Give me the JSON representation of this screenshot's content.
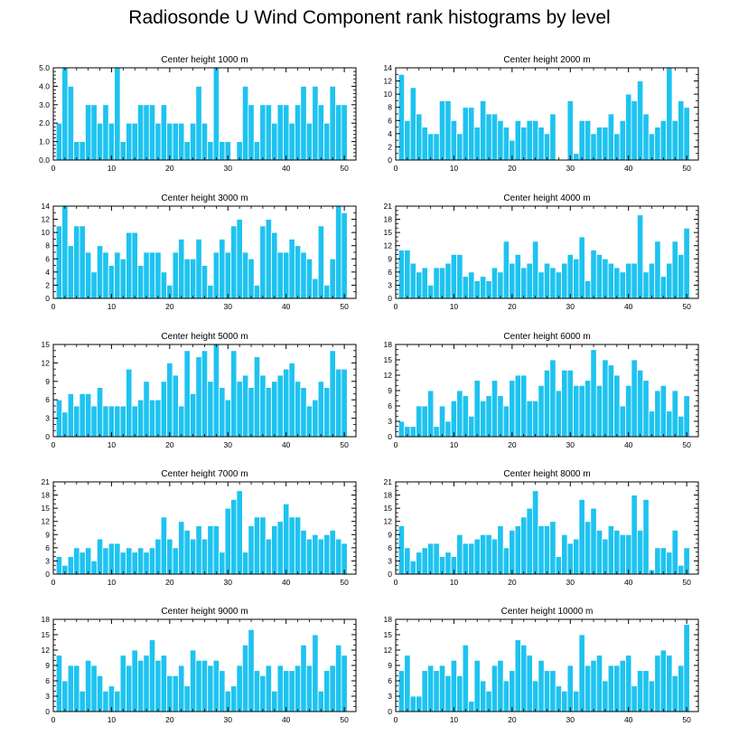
{
  "title": "Radiosonde U Wind Component rank histograms by level",
  "colors": {
    "bar": "#1EC3F0",
    "bar_edge": "#FFFFFF",
    "axis": "#000000"
  },
  "chart_data": [
    {
      "type": "bar",
      "title": "Center height 1000 m",
      "xlim": [
        0,
        52
      ],
      "ylim": [
        0,
        5
      ],
      "yticks": [
        "0.0",
        "1.0",
        "2.0",
        "3.0",
        "4.0",
        "5.0"
      ],
      "ytick_values": [
        0,
        1,
        2,
        3,
        4,
        5
      ],
      "xticks": [
        "0",
        "10",
        "20",
        "30",
        "40",
        "50"
      ],
      "xtick_values": [
        0,
        10,
        20,
        30,
        40,
        50
      ],
      "values": [
        2,
        5,
        4,
        1,
        1,
        3,
        3,
        2,
        3,
        2,
        5,
        1,
        2,
        2,
        3,
        3,
        3,
        2,
        3,
        2,
        2,
        2,
        1,
        2,
        4,
        2,
        1,
        5,
        1,
        1,
        0,
        1,
        4,
        3,
        1,
        3,
        3,
        2,
        3,
        3,
        2,
        3,
        4,
        2,
        4,
        3,
        2,
        4,
        3,
        3
      ]
    },
    {
      "type": "bar",
      "title": "Center height 2000 m",
      "xlim": [
        0,
        52
      ],
      "ylim": [
        0,
        14
      ],
      "yticks": [
        "0",
        "2",
        "4",
        "6",
        "8",
        "10",
        "12",
        "14"
      ],
      "ytick_values": [
        0,
        2,
        4,
        6,
        8,
        10,
        12,
        14
      ],
      "xticks": [
        "0",
        "10",
        "20",
        "30",
        "40",
        "50"
      ],
      "xtick_values": [
        0,
        10,
        20,
        30,
        40,
        50
      ],
      "values": [
        13,
        6,
        11,
        7,
        5,
        4,
        4,
        9,
        9,
        6,
        4,
        8,
        8,
        5,
        9,
        7,
        7,
        6,
        5,
        3,
        6,
        5,
        6,
        6,
        5,
        4,
        7,
        0,
        0,
        9,
        1,
        6,
        6,
        4,
        5,
        5,
        7,
        4,
        6,
        10,
        9,
        12,
        7,
        4,
        5,
        6,
        14,
        6,
        9,
        8
      ]
    },
    {
      "type": "bar",
      "title": "Center height 3000 m",
      "xlim": [
        0,
        52
      ],
      "ylim": [
        0,
        14
      ],
      "yticks": [
        "0",
        "2",
        "4",
        "6",
        "8",
        "10",
        "12",
        "14"
      ],
      "ytick_values": [
        0,
        2,
        4,
        6,
        8,
        10,
        12,
        14
      ],
      "xticks": [
        "0",
        "10",
        "20",
        "30",
        "40",
        "50"
      ],
      "xtick_values": [
        0,
        10,
        20,
        30,
        40,
        50
      ],
      "values": [
        11,
        14,
        8,
        11,
        11,
        7,
        4,
        8,
        7,
        5,
        7,
        6,
        10,
        10,
        5,
        7,
        7,
        7,
        4,
        2,
        7,
        9,
        6,
        6,
        9,
        5,
        2,
        7,
        9,
        7,
        11,
        12,
        7,
        6,
        2,
        11,
        12,
        10,
        7,
        7,
        9,
        8,
        7,
        6,
        3,
        11,
        2,
        6,
        14,
        13
      ]
    },
    {
      "type": "bar",
      "title": "Center height 4000 m",
      "xlim": [
        0,
        52
      ],
      "ylim": [
        0,
        21
      ],
      "yticks": [
        "0",
        "3",
        "6",
        "9",
        "12",
        "15",
        "18",
        "21"
      ],
      "ytick_values": [
        0,
        3,
        6,
        9,
        12,
        15,
        18,
        21
      ],
      "xticks": [
        "0",
        "10",
        "20",
        "30",
        "40",
        "50"
      ],
      "xtick_values": [
        0,
        10,
        20,
        30,
        40,
        50
      ],
      "values": [
        11,
        11,
        8,
        6,
        7,
        3,
        7,
        7,
        8,
        10,
        10,
        5,
        6,
        4,
        5,
        4,
        7,
        6,
        13,
        8,
        10,
        7,
        8,
        13,
        6,
        8,
        7,
        6,
        8,
        10,
        9,
        14,
        4,
        11,
        10,
        9,
        8,
        7,
        6,
        8,
        8,
        19,
        6,
        8,
        13,
        5,
        8,
        13,
        10,
        16
      ]
    },
    {
      "type": "bar",
      "title": "Center height 5000 m",
      "xlim": [
        0,
        52
      ],
      "ylim": [
        0,
        15
      ],
      "yticks": [
        "0",
        "3",
        "6",
        "9",
        "12",
        "15"
      ],
      "ytick_values": [
        0,
        3,
        6,
        9,
        12,
        15
      ],
      "xticks": [
        "0",
        "10",
        "20",
        "30",
        "40",
        "50"
      ],
      "xtick_values": [
        0,
        10,
        20,
        30,
        40,
        50
      ],
      "values": [
        6,
        4,
        7,
        5,
        7,
        7,
        5,
        8,
        5,
        5,
        5,
        5,
        11,
        5,
        6,
        9,
        6,
        6,
        9,
        12,
        10,
        5,
        14,
        7,
        13,
        14,
        9,
        15,
        8,
        6,
        14,
        9,
        10,
        8,
        13,
        10,
        8,
        9,
        10,
        11,
        12,
        9,
        8,
        5,
        6,
        9,
        8,
        14,
        11,
        11
      ]
    },
    {
      "type": "bar",
      "title": "Center height 6000 m",
      "xlim": [
        0,
        52
      ],
      "ylim": [
        0,
        18
      ],
      "yticks": [
        "0",
        "3",
        "6",
        "9",
        "12",
        "15",
        "18"
      ],
      "ytick_values": [
        0,
        3,
        6,
        9,
        12,
        15,
        18
      ],
      "xticks": [
        "0",
        "10",
        "20",
        "30",
        "40",
        "50"
      ],
      "xtick_values": [
        0,
        10,
        20,
        30,
        40,
        50
      ],
      "values": [
        3,
        2,
        2,
        6,
        6,
        9,
        2,
        6,
        3,
        7,
        9,
        8,
        4,
        11,
        7,
        8,
        11,
        8,
        6,
        11,
        12,
        12,
        7,
        7,
        10,
        13,
        15,
        9,
        13,
        13,
        10,
        10,
        11,
        17,
        10,
        15,
        14,
        12,
        6,
        10,
        15,
        13,
        11,
        5,
        9,
        10,
        5,
        9,
        4,
        8
      ]
    },
    {
      "type": "bar",
      "title": "Center height 7000 m",
      "xlim": [
        0,
        52
      ],
      "ylim": [
        0,
        21
      ],
      "yticks": [
        "0",
        "3",
        "6",
        "9",
        "12",
        "15",
        "18",
        "21"
      ],
      "ytick_values": [
        0,
        3,
        6,
        9,
        12,
        15,
        18,
        21
      ],
      "xticks": [
        "0",
        "10",
        "20",
        "30",
        "40",
        "50"
      ],
      "xtick_values": [
        0,
        10,
        20,
        30,
        40,
        50
      ],
      "values": [
        4,
        2,
        4,
        6,
        5,
        6,
        3,
        8,
        6,
        7,
        7,
        5,
        6,
        5,
        6,
        5,
        6,
        8,
        13,
        8,
        6,
        12,
        10,
        8,
        11,
        8,
        11,
        11,
        5,
        15,
        17,
        19,
        5,
        11,
        13,
        13,
        8,
        11,
        12,
        16,
        13,
        13,
        10,
        8,
        9,
        8,
        9,
        10,
        8,
        7
      ]
    },
    {
      "type": "bar",
      "title": "Center height 8000 m",
      "xlim": [
        0,
        52
      ],
      "ylim": [
        0,
        21
      ],
      "yticks": [
        "0",
        "3",
        "6",
        "9",
        "12",
        "15",
        "18",
        "21"
      ],
      "ytick_values": [
        0,
        3,
        6,
        9,
        12,
        15,
        18,
        21
      ],
      "xticks": [
        "0",
        "10",
        "20",
        "30",
        "40",
        "50"
      ],
      "xtick_values": [
        0,
        10,
        20,
        30,
        40,
        50
      ],
      "values": [
        11,
        6,
        3,
        5,
        6,
        7,
        7,
        4,
        5,
        4,
        9,
        7,
        7,
        8,
        9,
        9,
        8,
        11,
        6,
        10,
        11,
        13,
        15,
        19,
        11,
        11,
        12,
        4,
        9,
        7,
        8,
        17,
        12,
        15,
        10,
        8,
        11,
        10,
        9,
        9,
        18,
        10,
        17,
        1,
        6,
        6,
        5,
        10,
        2,
        6
      ]
    },
    {
      "type": "bar",
      "title": "Center height 9000 m",
      "xlim": [
        0,
        52
      ],
      "ylim": [
        0,
        18
      ],
      "yticks": [
        "0",
        "3",
        "6",
        "9",
        "12",
        "15",
        "18"
      ],
      "ytick_values": [
        0,
        3,
        6,
        9,
        12,
        15,
        18
      ],
      "xticks": [
        "0",
        "10",
        "20",
        "30",
        "40",
        "50"
      ],
      "xtick_values": [
        0,
        10,
        20,
        30,
        40,
        50
      ],
      "values": [
        11,
        6,
        9,
        9,
        4,
        10,
        9,
        7,
        4,
        5,
        4,
        11,
        9,
        12,
        10,
        11,
        14,
        10,
        11,
        7,
        7,
        9,
        5,
        12,
        10,
        10,
        9,
        10,
        8,
        4,
        5,
        9,
        13,
        16,
        8,
        7,
        9,
        4,
        9,
        8,
        8,
        9,
        13,
        9,
        15,
        4,
        8,
        9,
        13,
        11
      ]
    },
    {
      "type": "bar",
      "title": "Center height 10000 m",
      "xlim": [
        0,
        52
      ],
      "ylim": [
        0,
        18
      ],
      "yticks": [
        "0",
        "3",
        "6",
        "9",
        "12",
        "15",
        "18"
      ],
      "ytick_values": [
        0,
        3,
        6,
        9,
        12,
        15,
        18
      ],
      "xticks": [
        "0",
        "10",
        "20",
        "30",
        "40",
        "50"
      ],
      "xtick_values": [
        0,
        10,
        20,
        30,
        40,
        50
      ],
      "values": [
        8,
        11,
        3,
        3,
        8,
        9,
        8,
        9,
        7,
        10,
        7,
        13,
        2,
        10,
        6,
        4,
        9,
        10,
        6,
        8,
        14,
        13,
        11,
        6,
        10,
        8,
        8,
        5,
        4,
        9,
        4,
        15,
        9,
        10,
        11,
        6,
        9,
        9,
        10,
        11,
        5,
        8,
        8,
        6,
        11,
        12,
        11,
        7,
        9,
        17
      ]
    }
  ]
}
